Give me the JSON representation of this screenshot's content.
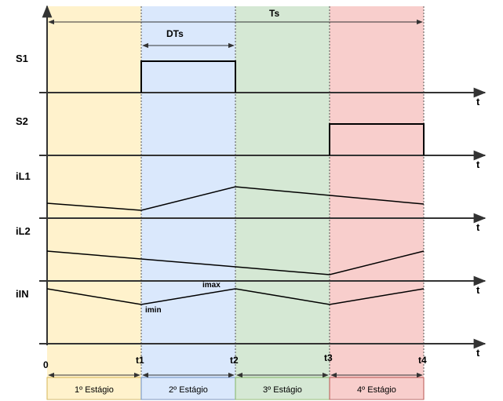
{
  "signals": {
    "s1": "S1",
    "s2": "S2",
    "il1": "iL1",
    "il2": "iL2",
    "iin": "iIN"
  },
  "axis_var": "t",
  "ticks": {
    "t0": "0",
    "t1": "t1",
    "t2": "t2",
    "t3": "t3",
    "t4": "t4"
  },
  "period": {
    "ts": "Ts",
    "dts": "DTs"
  },
  "annotations": {
    "imax": "imax",
    "imin": "imin"
  },
  "stages": {
    "s1": "1º Estágio",
    "s2": "2º Estágio",
    "s3": "3º Estágio",
    "s4": "4º Estágio"
  },
  "colors": {
    "stage1": "#fff2cc",
    "stage2": "#dae8fc",
    "stage3": "#d5e8d4",
    "stage4": "#f8cecc",
    "stage1_border": "#d6b656",
    "stage2_border": "#6c8ebf",
    "stage3_border": "#82b366",
    "stage4_border": "#b85450",
    "line": "#000000",
    "axis": "#333333"
  }
}
